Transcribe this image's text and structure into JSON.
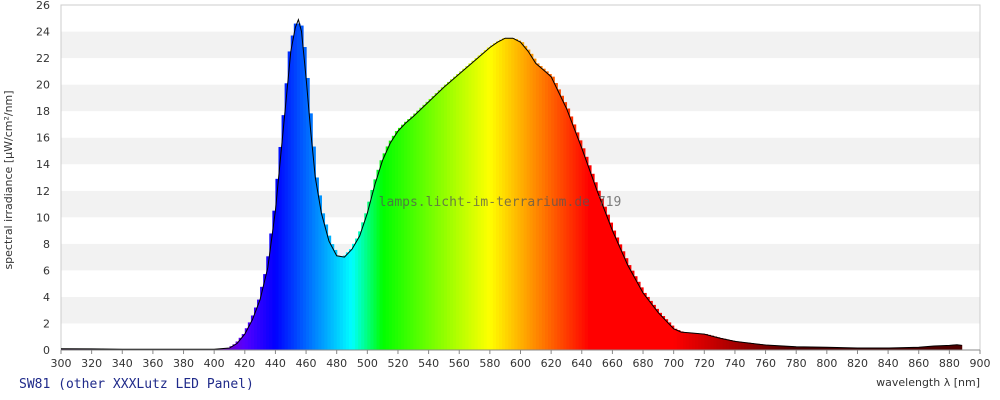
{
  "chart_data": {
    "type": "area",
    "xlabel": "wavelength λ [nm]",
    "ylabel": "spectral irradiance [µW/cm²/nm]",
    "xlim": [
      300,
      900
    ],
    "ylim": [
      0,
      26
    ],
    "x_ticks": [
      300,
      320,
      340,
      360,
      380,
      400,
      420,
      440,
      460,
      480,
      500,
      520,
      540,
      560,
      580,
      600,
      620,
      640,
      660,
      680,
      700,
      720,
      740,
      760,
      780,
      800,
      820,
      840,
      860,
      880,
      900
    ],
    "y_ticks": [
      0,
      2,
      4,
      6,
      8,
      10,
      12,
      14,
      16,
      18,
      20,
      22,
      24,
      26
    ],
    "grid": "horizontal alternating bands",
    "fill": "visible spectrum colors by wavelength",
    "watermark": "lamps.licht-im-terrarium.de 719",
    "caption": "SW81 (other XXXLutz LED Panel)",
    "series": [
      {
        "x": [
          300,
          320,
          340,
          360,
          380,
          400,
          410,
          415,
          420,
          425,
          430,
          435,
          440,
          445,
          450,
          453,
          455,
          457,
          460,
          463,
          466,
          470,
          475,
          480,
          485,
          490,
          495,
          500,
          505,
          510,
          515,
          520,
          525,
          530,
          540,
          550,
          560,
          570,
          580,
          585,
          590,
          595,
          600,
          605,
          610,
          615,
          620,
          630,
          640,
          650,
          660,
          670,
          680,
          690,
          700,
          705,
          710,
          720,
          730,
          740,
          760,
          780,
          800,
          820,
          840,
          860,
          870,
          880,
          885,
          888
        ],
        "y": [
          0.1,
          0.08,
          0.05,
          0.05,
          0.05,
          0.06,
          0.15,
          0.5,
          1.2,
          2.3,
          3.8,
          6.2,
          10.5,
          16.5,
          22.5,
          24.3,
          24.9,
          24.0,
          20.5,
          16.5,
          13.0,
          10.3,
          8.2,
          7.1,
          7.0,
          7.6,
          8.6,
          10.3,
          12.5,
          14.3,
          15.6,
          16.5,
          17.1,
          17.6,
          18.7,
          19.8,
          20.8,
          21.8,
          22.8,
          23.2,
          23.5,
          23.5,
          23.2,
          22.5,
          21.6,
          21.1,
          20.6,
          18.2,
          15.2,
          12.0,
          9.0,
          6.4,
          4.3,
          2.8,
          1.6,
          1.35,
          1.3,
          1.2,
          0.9,
          0.65,
          0.38,
          0.25,
          0.2,
          0.15,
          0.15,
          0.2,
          0.3,
          0.35,
          0.4,
          0.35
        ]
      }
    ]
  }
}
